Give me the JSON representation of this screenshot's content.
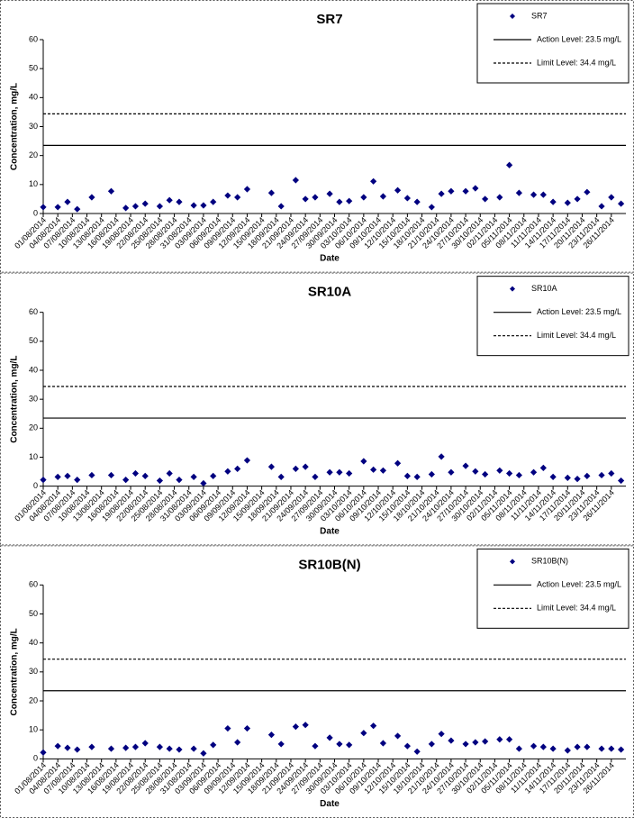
{
  "chart_data": [
    {
      "type": "scatter",
      "title": "SR7",
      "x_label": "Date",
      "y_label": "Concentration, mg/L",
      "legend_position": "top-right",
      "grid": false,
      "x": [
        "01/08/2014",
        "04/08/2014",
        "06/08/2014",
        "08/08/2014",
        "11/08/2014",
        "15/08/2014",
        "18/08/2014",
        "20/08/2014",
        "22/08/2014",
        "25/08/2014",
        "27/08/2014",
        "29/08/2014",
        "01/09/2014",
        "03/09/2014",
        "05/09/2014",
        "08/09/2014",
        "10/09/2014",
        "12/09/2014",
        "17/09/2014",
        "19/09/2014",
        "22/09/2014",
        "24/09/2014",
        "26/09/2014",
        "29/09/2014",
        "01/10/2014",
        "03/10/2014",
        "06/10/2014",
        "08/10/2014",
        "10/10/2014",
        "13/10/2014",
        "15/10/2014",
        "17/10/2014",
        "20/10/2014",
        "22/10/2014",
        "24/10/2014",
        "27/10/2014",
        "29/10/2014",
        "31/10/2014",
        "03/11/2014",
        "05/11/2014",
        "07/11/2014",
        "10/11/2014",
        "12/11/2014",
        "14/11/2014",
        "17/11/2014",
        "19/11/2014",
        "21/11/2014",
        "24/11/2014",
        "26/11/2014",
        "28/11/2014"
      ],
      "series": [
        {
          "name": "SR7",
          "color": "#000080",
          "values": [
            2.2,
            2.2,
            4.0,
            1.5,
            5.6,
            7.7,
            1.9,
            2.5,
            3.4,
            2.5,
            4.6,
            4.0,
            2.8,
            2.8,
            4.0,
            6.2,
            5.6,
            8.4,
            7.1,
            2.5,
            11.5,
            5.0,
            5.6,
            6.8,
            4.0,
            4.3,
            5.6,
            11.1,
            5.9,
            8.0,
            5.3,
            4.0,
            2.2,
            6.8,
            7.7,
            7.7,
            8.7,
            5.0,
            5.6,
            16.7,
            7.1,
            6.5,
            6.5,
            4.0,
            3.7,
            5.0,
            7.4,
            2.5,
            5.6,
            3.4
          ]
        }
      ],
      "reference_lines": [
        {
          "name": "Action Level: 23.5 mg/L",
          "value": 23.5,
          "style": "solid"
        },
        {
          "name": "Limit Level: 34.4 mg/L",
          "value": 34.4,
          "style": "dashed"
        }
      ],
      "xlim": [
        "01/08/2014",
        "29/11/2014"
      ],
      "xticks": [
        "01/08/2014",
        "04/08/2014",
        "07/08/2014",
        "10/08/2014",
        "13/08/2014",
        "16/08/2014",
        "19/08/2014",
        "22/08/2014",
        "25/08/2014",
        "28/08/2014",
        "31/08/2014",
        "03/09/2014",
        "06/09/2014",
        "09/09/2014",
        "12/09/2014",
        "15/09/2014",
        "18/09/2014",
        "21/09/2014",
        "24/09/2014",
        "27/09/2014",
        "30/09/2014",
        "03/10/2014",
        "06/10/2014",
        "09/10/2014",
        "12/10/2014",
        "15/10/2014",
        "18/10/2014",
        "21/10/2014",
        "24/10/2014",
        "27/10/2014",
        "30/10/2014",
        "02/11/2014",
        "05/11/2014",
        "08/11/2014",
        "11/11/2014",
        "14/11/2014",
        "17/11/2014",
        "20/11/2014",
        "23/11/2014",
        "26/11/2014"
      ],
      "ylim": [
        0,
        60
      ],
      "yticks": [
        0,
        10,
        20,
        30,
        40,
        50,
        60
      ]
    },
    {
      "type": "scatter",
      "title": "SR10A",
      "x_label": "Date",
      "y_label": "Concentration, mg/L",
      "legend_position": "top-right",
      "grid": false,
      "x": [
        "01/08/2014",
        "04/08/2014",
        "06/08/2014",
        "08/08/2014",
        "11/08/2014",
        "15/08/2014",
        "18/08/2014",
        "20/08/2014",
        "22/08/2014",
        "25/08/2014",
        "27/08/2014",
        "29/08/2014",
        "01/09/2014",
        "03/09/2014",
        "05/09/2014",
        "08/09/2014",
        "10/09/2014",
        "12/09/2014",
        "17/09/2014",
        "19/09/2014",
        "22/09/2014",
        "24/09/2014",
        "26/09/2014",
        "29/09/2014",
        "01/10/2014",
        "03/10/2014",
        "06/10/2014",
        "08/10/2014",
        "10/10/2014",
        "13/10/2014",
        "15/10/2014",
        "17/10/2014",
        "20/10/2014",
        "22/10/2014",
        "24/10/2014",
        "27/10/2014",
        "29/10/2014",
        "31/10/2014",
        "03/11/2014",
        "05/11/2014",
        "07/11/2014",
        "10/11/2014",
        "12/11/2014",
        "14/11/2014",
        "17/11/2014",
        "19/11/2014",
        "21/11/2014",
        "24/11/2014",
        "26/11/2014",
        "28/11/2014"
      ],
      "series": [
        {
          "name": "SR10A",
          "color": "#000080",
          "values": [
            2.2,
            3.2,
            3.5,
            2.2,
            3.8,
            3.8,
            2.2,
            4.4,
            3.5,
            1.9,
            4.4,
            2.2,
            3.2,
            1.0,
            3.5,
            5.1,
            6.0,
            8.9,
            6.7,
            3.2,
            6.0,
            6.7,
            3.2,
            4.8,
            4.8,
            4.4,
            8.6,
            5.7,
            5.4,
            7.9,
            3.5,
            3.2,
            4.1,
            10.2,
            4.8,
            7.0,
            5.1,
            4.1,
            5.4,
            4.4,
            3.8,
            4.8,
            6.3,
            3.2,
            2.9,
            2.5,
            3.5,
            3.8,
            4.4,
            1.9
          ]
        }
      ],
      "reference_lines": [
        {
          "name": "Action Level: 23.5 mg/L",
          "value": 23.5,
          "style": "solid"
        },
        {
          "name": "Limit Level: 34.4 mg/L",
          "value": 34.4,
          "style": "dashed"
        }
      ],
      "xlim": [
        "01/08/2014",
        "29/11/2014"
      ],
      "xticks": [
        "01/08/2014",
        "04/08/2014",
        "07/08/2014",
        "10/08/2014",
        "13/08/2014",
        "16/08/2014",
        "19/08/2014",
        "22/08/2014",
        "25/08/2014",
        "28/08/2014",
        "31/08/2014",
        "03/09/2014",
        "06/09/2014",
        "09/09/2014",
        "12/09/2014",
        "15/09/2014",
        "18/09/2014",
        "21/09/2014",
        "24/09/2014",
        "27/09/2014",
        "30/09/2014",
        "03/10/2014",
        "06/10/2014",
        "09/10/2014",
        "12/10/2014",
        "15/10/2014",
        "18/10/2014",
        "21/10/2014",
        "24/10/2014",
        "27/10/2014",
        "30/10/2014",
        "02/11/2014",
        "05/11/2014",
        "08/11/2014",
        "11/11/2014",
        "14/11/2014",
        "17/11/2014",
        "20/11/2014",
        "23/11/2014",
        "26/11/2014"
      ],
      "ylim": [
        0,
        60
      ],
      "yticks": [
        0,
        10,
        20,
        30,
        40,
        50,
        60
      ]
    },
    {
      "type": "scatter",
      "title": "SR10B(N)",
      "x_label": "Date",
      "y_label": "Concentration, mg/L",
      "legend_position": "top-right",
      "grid": false,
      "x": [
        "01/08/2014",
        "04/08/2014",
        "06/08/2014",
        "08/08/2014",
        "11/08/2014",
        "15/08/2014",
        "18/08/2014",
        "20/08/2014",
        "22/08/2014",
        "25/08/2014",
        "27/08/2014",
        "29/08/2014",
        "01/09/2014",
        "03/09/2014",
        "05/09/2014",
        "08/09/2014",
        "10/09/2014",
        "12/09/2014",
        "17/09/2014",
        "19/09/2014",
        "22/09/2014",
        "24/09/2014",
        "26/09/2014",
        "29/09/2014",
        "01/10/2014",
        "03/10/2014",
        "06/10/2014",
        "08/10/2014",
        "10/10/2014",
        "13/10/2014",
        "15/10/2014",
        "17/10/2014",
        "20/10/2014",
        "22/10/2014",
        "24/10/2014",
        "27/10/2014",
        "29/10/2014",
        "31/10/2014",
        "03/11/2014",
        "05/11/2014",
        "07/11/2014",
        "10/11/2014",
        "12/11/2014",
        "14/11/2014",
        "17/11/2014",
        "19/11/2014",
        "21/11/2014",
        "24/11/2014",
        "26/11/2014",
        "28/11/2014"
      ],
      "series": [
        {
          "name": "SR10B(N)",
          "color": "#000080",
          "values": [
            2.2,
            4.4,
            3.8,
            3.2,
            4.1,
            3.5,
            3.8,
            4.1,
            5.4,
            4.1,
            3.5,
            3.2,
            3.5,
            1.9,
            4.8,
            10.5,
            5.7,
            10.5,
            8.3,
            5.1,
            11.1,
            11.7,
            4.4,
            7.3,
            5.1,
            4.8,
            8.9,
            11.4,
            5.4,
            7.9,
            4.4,
            2.5,
            5.1,
            8.6,
            6.3,
            5.1,
            5.7,
            6.0,
            6.7,
            6.7,
            3.5,
            4.4,
            4.1,
            3.5,
            2.9,
            4.1,
            4.1,
            3.5,
            3.5,
            3.2
          ]
        }
      ],
      "reference_lines": [
        {
          "name": "Action Level: 23.5 mg/L",
          "value": 23.5,
          "style": "solid"
        },
        {
          "name": "Limit Level: 34.4 mg/L",
          "value": 34.4,
          "style": "dashed"
        }
      ],
      "xlim": [
        "01/08/2014",
        "29/11/2014"
      ],
      "xticks": [
        "01/08/2014",
        "04/08/2014",
        "07/08/2014",
        "10/08/2014",
        "13/08/2014",
        "16/08/2014",
        "19/08/2014",
        "22/08/2014",
        "25/08/2014",
        "28/08/2014",
        "31/08/2014",
        "03/09/2014",
        "06/09/2014",
        "09/09/2014",
        "12/09/2014",
        "15/09/2014",
        "18/09/2014",
        "21/09/2014",
        "24/09/2014",
        "27/09/2014",
        "30/09/2014",
        "03/10/2014",
        "06/10/2014",
        "09/10/2014",
        "12/10/2014",
        "15/10/2014",
        "18/10/2014",
        "21/10/2014",
        "24/10/2014",
        "27/10/2014",
        "30/10/2014",
        "02/11/2014",
        "05/11/2014",
        "08/11/2014",
        "11/11/2014",
        "14/11/2014",
        "17/11/2014",
        "20/11/2014",
        "23/11/2014",
        "26/11/2014"
      ],
      "ylim": [
        0,
        60
      ],
      "yticks": [
        0,
        10,
        20,
        30,
        40,
        50,
        60
      ]
    }
  ]
}
